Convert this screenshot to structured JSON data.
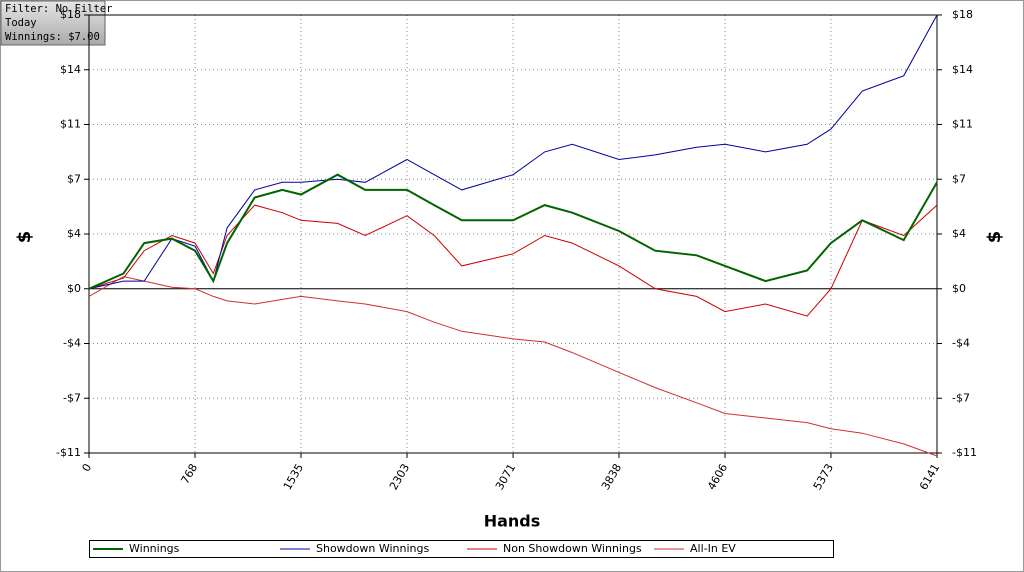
{
  "filter": [
    "Filter: No Filter",
    "Today",
    "Winnings: $7.00"
  ],
  "chart_data": {
    "type": "line",
    "xlabel": "Hands",
    "ylabel": "$",
    "y2label": "$",
    "x": [
      0,
      250,
      400,
      600,
      768,
      900,
      1000,
      1200,
      1400,
      1535,
      1800,
      2000,
      2303,
      2500,
      2700,
      3071,
      3300,
      3500,
      3838,
      4100,
      4400,
      4606,
      4900,
      5200,
      5373,
      5600,
      5900,
      6141
    ],
    "series": [
      {
        "name": "Winnings",
        "color": "#006400",
        "width": 2,
        "values": [
          0,
          1,
          3,
          3.3,
          2.5,
          0.5,
          3,
          6,
          6.5,
          6.2,
          7.5,
          6.5,
          6.5,
          5.5,
          4.5,
          4.5,
          5.5,
          5,
          3.8,
          2.5,
          2.2,
          1.5,
          0.5,
          1.2,
          3,
          4.5,
          3.2,
          7
        ]
      },
      {
        "name": "Showdown Winnings",
        "color": "#0000a0",
        "width": 1,
        "values": [
          0,
          0.5,
          0.5,
          3.3,
          2.8,
          0.5,
          4,
          6.5,
          7,
          7,
          7.2,
          7,
          8.5,
          7.5,
          6.5,
          7.5,
          9,
          9.5,
          8.5,
          8.8,
          9.3,
          9.5,
          9,
          9.5,
          10.5,
          13,
          14,
          18
        ]
      },
      {
        "name": "Non Showdown Winnings",
        "color": "#cc0000",
        "width": 1,
        "values": [
          0,
          0.7,
          2.5,
          3.5,
          3,
          1,
          3.5,
          5.5,
          5,
          4.5,
          4.3,
          3.5,
          4.8,
          3.5,
          1.5,
          2.3,
          3.5,
          3,
          1.5,
          0,
          -0.5,
          -1.5,
          -1,
          -1.8,
          0,
          4.5,
          3.5,
          5.5
        ]
      },
      {
        "name": "All-In EV",
        "color": "#d03030",
        "width": 1,
        "values": [
          -0.5,
          0.8,
          0.5,
          0.1,
          0,
          -0.5,
          -0.8,
          -1,
          -0.7,
          -0.5,
          -0.8,
          -1,
          -1.5,
          -2.2,
          -2.8,
          -3.3,
          -3.5,
          -4.2,
          -5.5,
          -6.5,
          -7.5,
          -8.2,
          -8.5,
          -8.8,
          -9.2,
          -9.5,
          -10.2,
          -11
        ]
      }
    ],
    "xlim": [
      0,
      6141
    ],
    "xticks": [
      0,
      768,
      1535,
      2303,
      3071,
      3838,
      4606,
      5373,
      6141
    ],
    "ylim": [
      -10.8,
      18
    ],
    "yticks": [
      {
        "value": -10.8,
        "label": "-$11"
      },
      {
        "value": -7.2,
        "label": "-$7"
      },
      {
        "value": -3.6,
        "label": "-$4"
      },
      {
        "value": 0,
        "label": "$0"
      },
      {
        "value": 3.6,
        "label": "$4"
      },
      {
        "value": 7.2,
        "label": "$7"
      },
      {
        "value": 10.8,
        "label": "$11"
      },
      {
        "value": 14.4,
        "label": "$14"
      },
      {
        "value": 18,
        "label": "$18"
      }
    ],
    "y2lim": [
      -10.8,
      18
    ],
    "y2ticks": [
      {
        "value": -10.8,
        "label": "-$11"
      },
      {
        "value": -7.2,
        "label": "-$7"
      },
      {
        "value": -3.6,
        "label": "-$4"
      },
      {
        "value": 0,
        "label": "$0"
      },
      {
        "value": 3.6,
        "label": "$4"
      },
      {
        "value": 7.2,
        "label": "$7"
      },
      {
        "value": 10.8,
        "label": "$11"
      },
      {
        "value": 14.4,
        "label": "$14"
      },
      {
        "value": 18,
        "label": "$18"
      }
    ],
    "grid": true,
    "legend": "bottom"
  }
}
